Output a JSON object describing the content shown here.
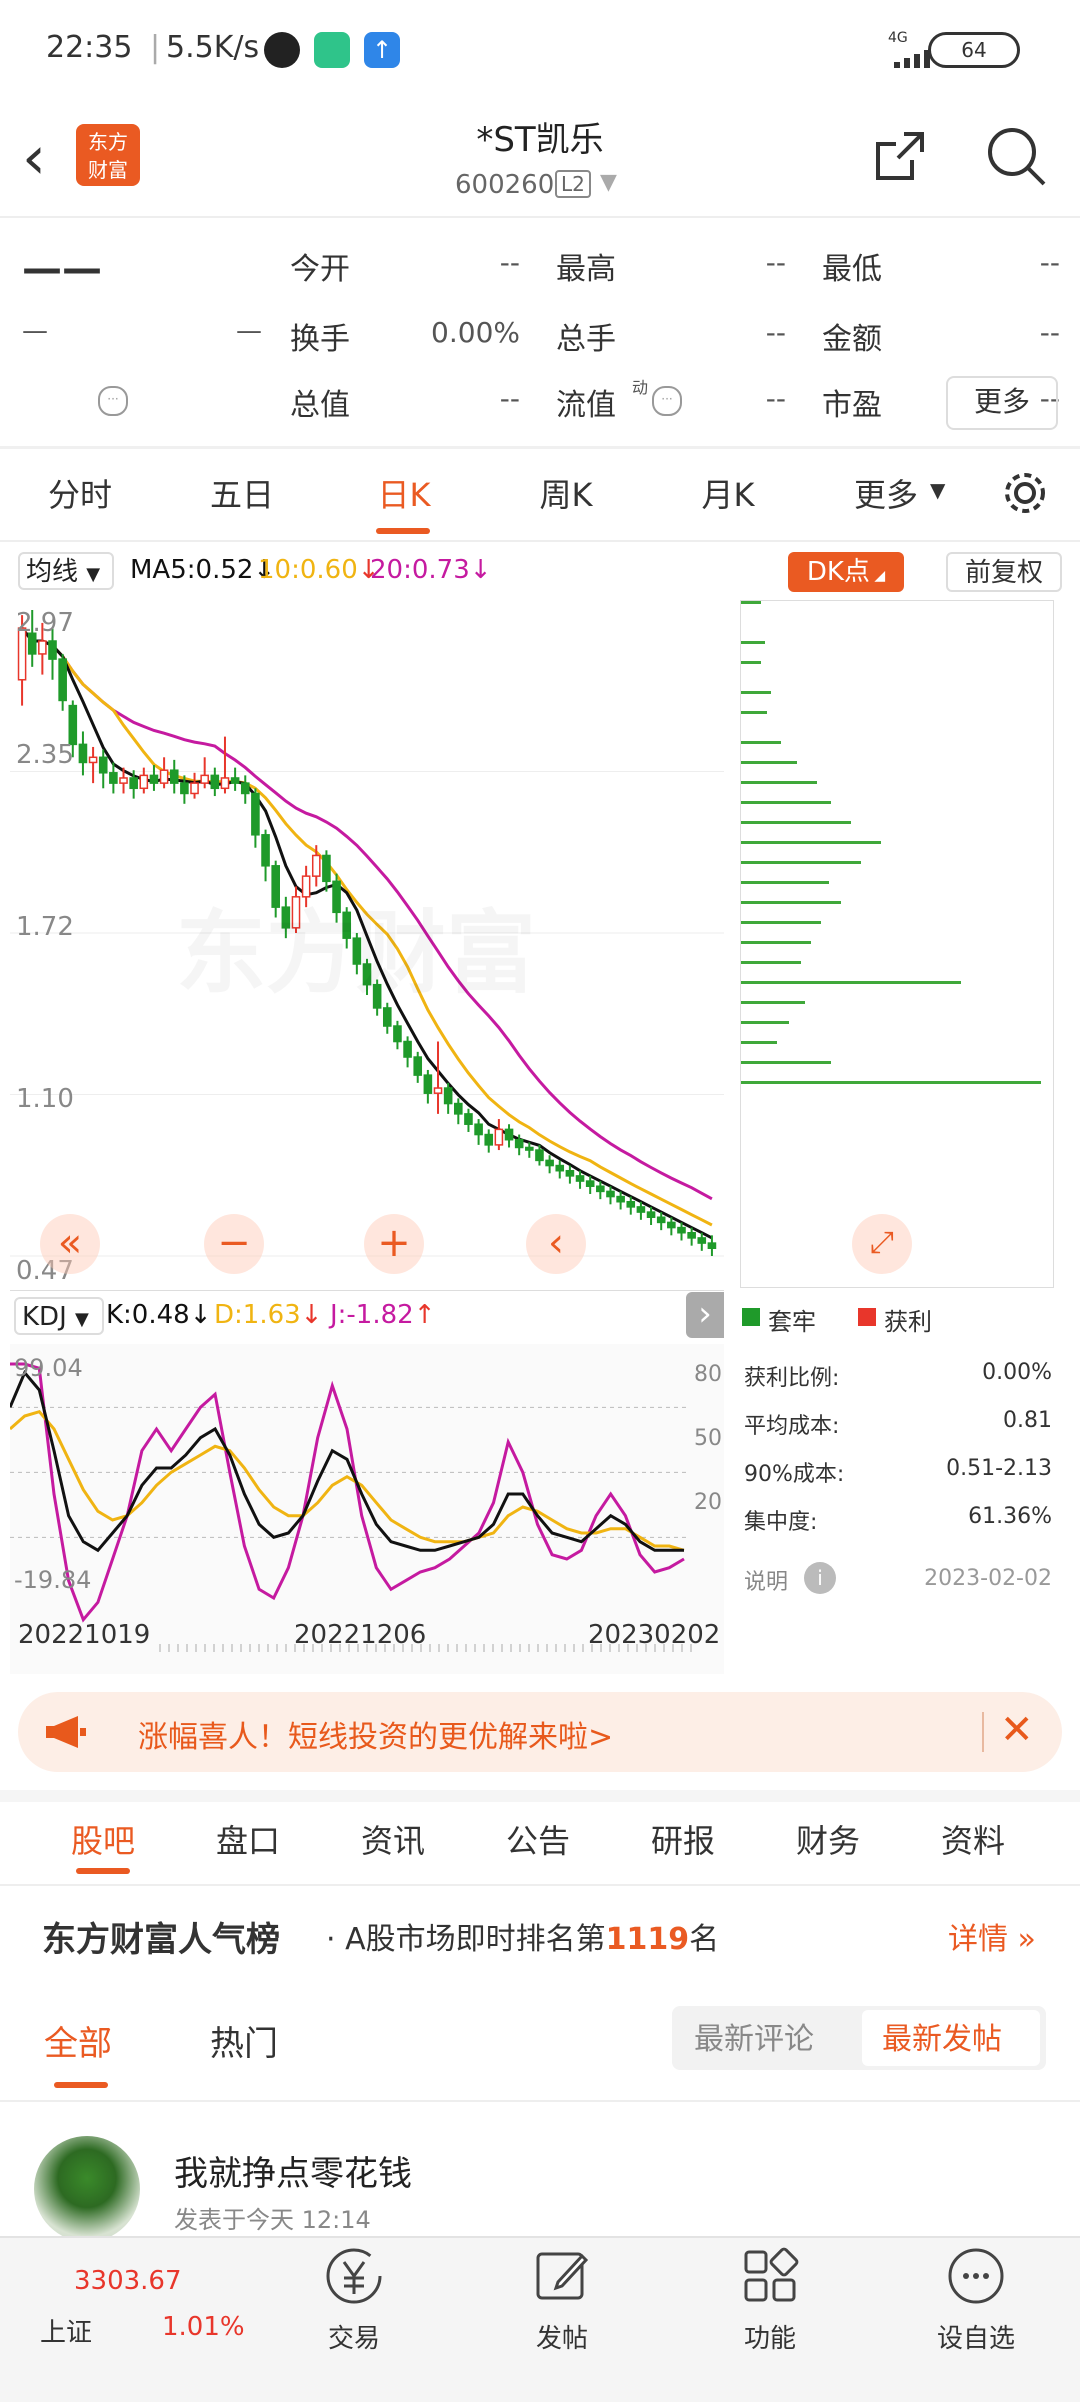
{
  "status_bar": {
    "time": "22:35",
    "network_speed": "5.5K/s",
    "signal": "4G",
    "battery": "64"
  },
  "header": {
    "logo_text_1": "东方",
    "logo_text_2": "财富",
    "stock_name": "*ST凯乐",
    "stock_code": "600260",
    "level_badge": "L2"
  },
  "quote": {
    "last_price": "——",
    "change": "—",
    "change_pct": "—",
    "items": [
      {
        "label": "今开",
        "value": "--"
      },
      {
        "label": "最高",
        "value": "--"
      },
      {
        "label": "最低",
        "value": "--"
      },
      {
        "label": "换手",
        "value": "0.00%"
      },
      {
        "label": "总手",
        "value": "--"
      },
      {
        "label": "金额",
        "value": "--"
      },
      {
        "label": "总值",
        "value": "--"
      },
      {
        "label": "流值",
        "value": "--"
      },
      {
        "label": "市盈",
        "value": "--"
      }
    ],
    "pe_superscript": "动",
    "more_label": "更多"
  },
  "chart_tabs": {
    "items": [
      "分时",
      "五日",
      "日K",
      "周K",
      "月K",
      "更多"
    ],
    "active": "日K"
  },
  "kline": {
    "ma_selector": "均线",
    "ma5": "MA5:0.52",
    "ma10": "10:0.60",
    "ma20": "20:0.73",
    "dk_button": "DK点",
    "adjust_button": "前复权",
    "price_labels": [
      "2.97",
      "2.35",
      "1.72",
      "1.10",
      "0.47"
    ],
    "colors": {
      "up": "#e8362b",
      "down": "#1f9a2a",
      "ma5": "#111111",
      "ma10": "#f0b412",
      "ma20": "#c51aa0",
      "accent": "#ea5a22"
    }
  },
  "distribution": {
    "legend_loss": "套牢",
    "legend_profit": "获利",
    "stats": [
      {
        "label": "获利比例:",
        "value": "0.00%"
      },
      {
        "label": "平均成本:",
        "value": "0.81"
      },
      {
        "label": "90%成本:",
        "value": "0.51-2.13"
      },
      {
        "label": "集中度:",
        "value": "61.36%"
      }
    ],
    "note_label": "说明",
    "date": "2023-02-02"
  },
  "kdj": {
    "selector": "KDJ",
    "k": "K:0.48",
    "d": "D:1.63",
    "j": "J:-1.82",
    "max_label": "99.04",
    "min_label": "-19.84",
    "levels": [
      "80",
      "50",
      "20"
    ],
    "dates": [
      "20221019",
      "20221206",
      "20230202"
    ]
  },
  "banner": {
    "text": "涨幅喜人！短线投资的更优解来啦>"
  },
  "section_tabs": {
    "items": [
      "股吧",
      "盘口",
      "资讯",
      "公告",
      "研报",
      "财务",
      "资料"
    ],
    "active": "股吧"
  },
  "ranking": {
    "title": "东方财富人气榜",
    "text_before": "· A股市场即时排名第",
    "rank": "1119",
    "text_after": "名",
    "detail": "详情"
  },
  "feed_tabs": {
    "all": "全部",
    "hot": "热门",
    "sort_latest_comment": "最新评论",
    "sort_latest_post": "最新发帖"
  },
  "post": {
    "username": "我就挣点零花钱",
    "meta": "发表于今天  12:14"
  },
  "bottom_nav": {
    "index_value": "3303.67",
    "index_name": "上证",
    "index_change": "1.01%",
    "items": [
      "交易",
      "发帖",
      "功能",
      "设自选"
    ]
  },
  "chart_data": {
    "type": "candlestick",
    "title": "",
    "y_range": [
      0.47,
      2.97
    ],
    "x_labels": [
      "20221019",
      "20221206",
      "20230202"
    ],
    "series": [
      {
        "name": "MA5",
        "last": 0.52
      },
      {
        "name": "MA10",
        "last": 0.6
      },
      {
        "name": "MA20",
        "last": 0.73
      }
    ],
    "candles": [
      [
        2.7,
        2.9,
        2.6,
        2.95
      ],
      [
        2.88,
        2.8,
        2.75,
        2.97
      ],
      [
        2.8,
        2.85,
        2.72,
        2.92
      ],
      [
        2.85,
        2.78,
        2.7,
        2.9
      ],
      [
        2.78,
        2.62,
        2.58,
        2.8
      ],
      [
        2.6,
        2.45,
        2.4,
        2.62
      ],
      [
        2.45,
        2.38,
        2.33,
        2.5
      ],
      [
        2.38,
        2.4,
        2.3,
        2.44
      ],
      [
        2.4,
        2.34,
        2.28,
        2.43
      ],
      [
        2.34,
        2.3,
        2.26,
        2.38
      ],
      [
        2.3,
        2.32,
        2.26,
        2.36
      ],
      [
        2.32,
        2.28,
        2.24,
        2.35
      ],
      [
        2.28,
        2.33,
        2.26,
        2.36
      ],
      [
        2.33,
        2.3,
        2.27,
        2.37
      ],
      [
        2.3,
        2.35,
        2.28,
        2.4
      ],
      [
        2.35,
        2.3,
        2.26,
        2.39
      ],
      [
        2.3,
        2.26,
        2.22,
        2.33
      ],
      [
        2.26,
        2.3,
        2.24,
        2.34
      ],
      [
        2.3,
        2.33,
        2.28,
        2.4
      ],
      [
        2.33,
        2.28,
        2.25,
        2.36
      ],
      [
        2.28,
        2.32,
        2.26,
        2.48
      ],
      [
        2.32,
        2.3,
        2.27,
        2.36
      ],
      [
        2.3,
        2.26,
        2.22,
        2.33
      ],
      [
        2.26,
        2.1,
        2.05,
        2.28
      ],
      [
        2.1,
        1.98,
        1.92,
        2.12
      ],
      [
        1.98,
        1.82,
        1.78,
        2.0
      ],
      [
        1.82,
        1.74,
        1.7,
        1.86
      ],
      [
        1.74,
        1.86,
        1.72,
        1.9
      ],
      [
        1.86,
        1.94,
        1.82,
        1.98
      ],
      [
        1.94,
        2.02,
        1.9,
        2.06
      ],
      [
        2.02,
        1.92,
        1.88,
        2.04
      ],
      [
        1.92,
        1.8,
        1.76,
        1.95
      ],
      [
        1.8,
        1.7,
        1.66,
        1.82
      ],
      [
        1.7,
        1.6,
        1.56,
        1.72
      ],
      [
        1.6,
        1.52,
        1.48,
        1.62
      ],
      [
        1.52,
        1.43,
        1.4,
        1.54
      ],
      [
        1.43,
        1.36,
        1.33,
        1.45
      ],
      [
        1.36,
        1.3,
        1.27,
        1.38
      ],
      [
        1.3,
        1.24,
        1.2,
        1.32
      ],
      [
        1.24,
        1.17,
        1.14,
        1.26
      ],
      [
        1.17,
        1.1,
        1.06,
        1.19
      ],
      [
        1.1,
        1.12,
        1.02,
        1.3
      ],
      [
        1.12,
        1.06,
        1.02,
        1.14
      ],
      [
        1.06,
        1.02,
        0.98,
        1.08
      ],
      [
        1.02,
        0.98,
        0.95,
        1.04
      ],
      [
        0.98,
        0.94,
        0.9,
        1.0
      ],
      [
        0.94,
        0.9,
        0.87,
        0.96
      ],
      [
        0.9,
        0.96,
        0.88,
        1.0
      ],
      [
        0.96,
        0.92,
        0.89,
        0.98
      ],
      [
        0.92,
        0.89,
        0.86,
        0.94
      ],
      [
        0.89,
        0.88,
        0.85,
        0.91
      ],
      [
        0.88,
        0.84,
        0.82,
        0.9
      ],
      [
        0.84,
        0.82,
        0.79,
        0.86
      ],
      [
        0.82,
        0.8,
        0.77,
        0.84
      ],
      [
        0.8,
        0.78,
        0.75,
        0.82
      ],
      [
        0.78,
        0.76,
        0.73,
        0.8
      ],
      [
        0.76,
        0.74,
        0.71,
        0.78
      ],
      [
        0.74,
        0.72,
        0.69,
        0.76
      ],
      [
        0.72,
        0.7,
        0.67,
        0.74
      ],
      [
        0.7,
        0.68,
        0.65,
        0.72
      ],
      [
        0.68,
        0.66,
        0.63,
        0.7
      ],
      [
        0.66,
        0.64,
        0.61,
        0.68
      ],
      [
        0.64,
        0.62,
        0.59,
        0.66
      ],
      [
        0.62,
        0.6,
        0.57,
        0.64
      ],
      [
        0.6,
        0.58,
        0.55,
        0.62
      ],
      [
        0.58,
        0.56,
        0.53,
        0.6
      ],
      [
        0.56,
        0.54,
        0.51,
        0.58
      ],
      [
        0.54,
        0.52,
        0.49,
        0.56
      ],
      [
        0.52,
        0.5,
        0.47,
        0.55
      ]
    ]
  }
}
